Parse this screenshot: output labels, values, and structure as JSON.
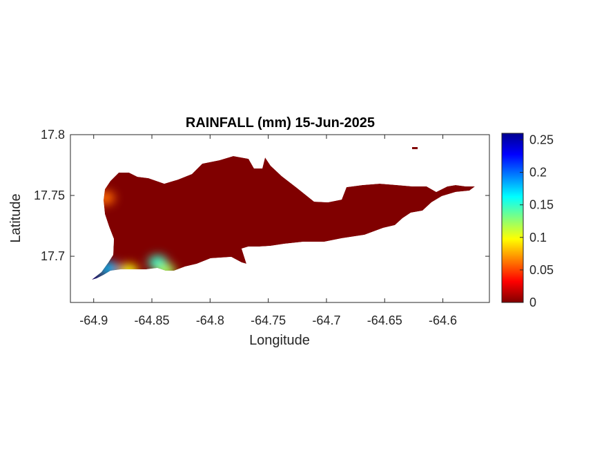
{
  "chart_data": {
    "type": "heatmap",
    "title": "RAINFALL (mm) 15-Jun-2025",
    "xlabel": "Longitude",
    "ylabel": "Latitude",
    "xlim": [
      -64.92,
      -64.56
    ],
    "ylim": [
      17.662,
      17.8
    ],
    "x_ticks": [
      -64.9,
      -64.85,
      -64.8,
      -64.75,
      -64.7,
      -64.65,
      -64.6
    ],
    "x_tick_labels": [
      "-64.9",
      "-64.85",
      "-64.8",
      "-64.75",
      "-64.7",
      "-64.65",
      "-64.6"
    ],
    "y_ticks": [
      17.7,
      17.75,
      17.8
    ],
    "y_tick_labels": [
      "17.7",
      "17.75",
      "17.8"
    ],
    "colorbar": {
      "range": [
        0,
        0.26
      ],
      "ticks": [
        0,
        0.05,
        0.1,
        0.15,
        0.2,
        0.25
      ],
      "tick_labels": [
        "0",
        "0.05",
        "0.1",
        "0.15",
        "0.2",
        "0.25"
      ],
      "colormap": "jet"
    },
    "background_value": 0,
    "hotspots": [
      {
        "lon": -64.899,
        "lat": 17.68,
        "value": 0.26
      },
      {
        "lon": -64.887,
        "lat": 17.69,
        "value": 0.18
      },
      {
        "lon": -64.87,
        "lat": 17.688,
        "value": 0.1
      },
      {
        "lon": -64.845,
        "lat": 17.695,
        "value": 0.15
      },
      {
        "lon": -64.838,
        "lat": 17.688,
        "value": 0.12
      },
      {
        "lon": -64.89,
        "lat": 17.748,
        "value": 0.06
      }
    ],
    "grid": false
  }
}
